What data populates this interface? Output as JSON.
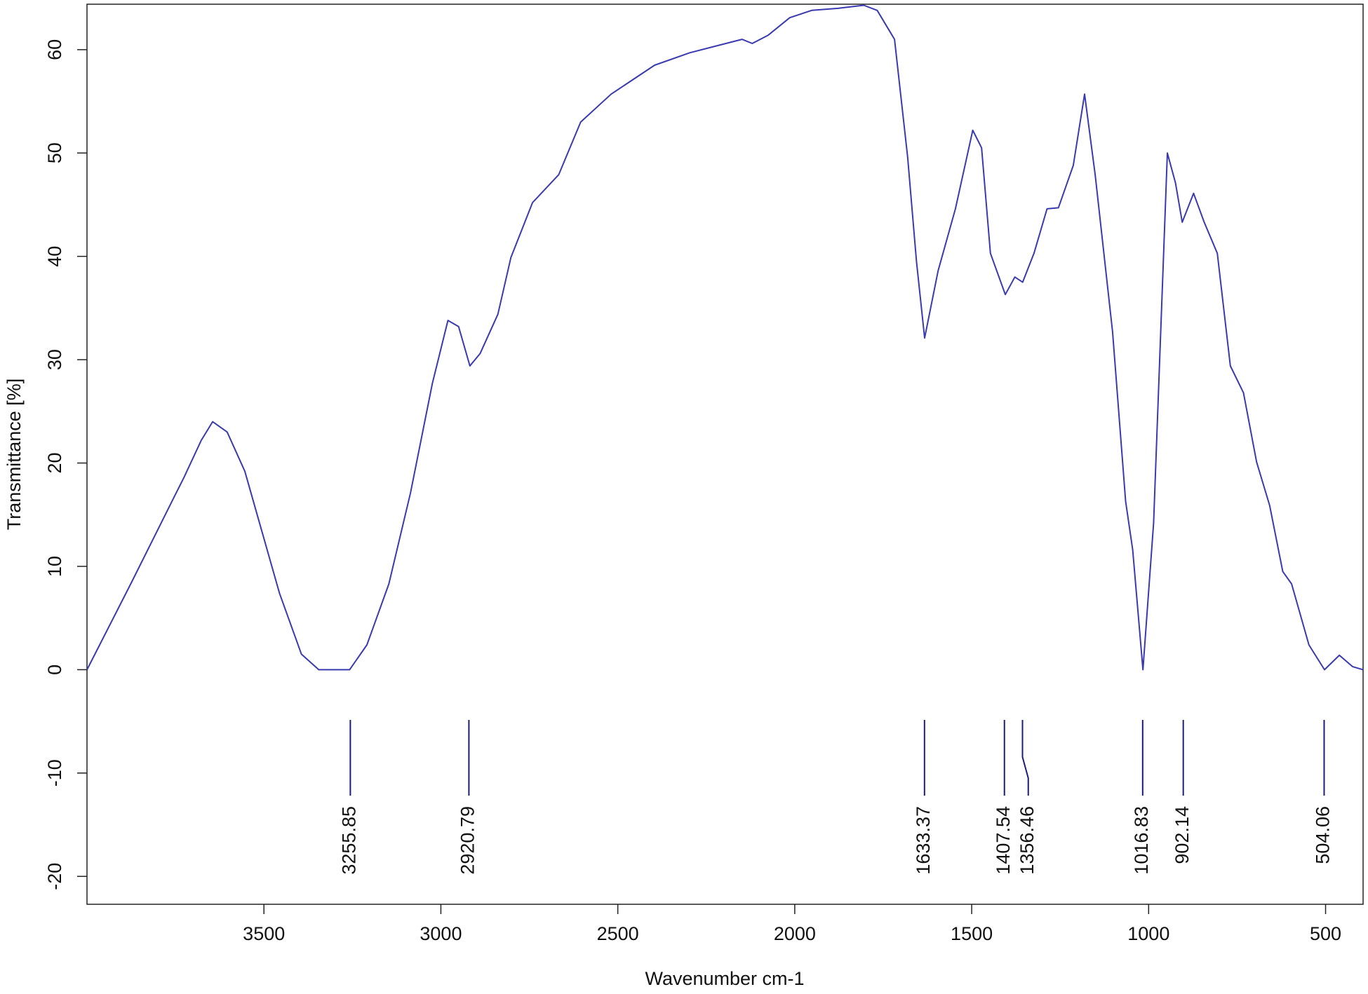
{
  "chart_data": {
    "type": "line",
    "xlabel": "Wavenumber cm-1",
    "ylabel": "Transmittance [%]",
    "x": [
      4000,
      3875,
      3751,
      3726,
      3677,
      3645,
      3604,
      3554,
      3505,
      3456,
      3394,
      3345,
      3258,
      3209,
      3147,
      3086,
      3024,
      2980,
      2950,
      2918,
      2889,
      2839,
      2802,
      2741,
      2667,
      2605,
      2519,
      2396,
      2297,
      2149,
      2120,
      2075,
      2014,
      1952,
      1878,
      1805,
      1767,
      1718,
      1681,
      1656,
      1633,
      1595,
      1546,
      1497,
      1472,
      1447,
      1405,
      1378,
      1356,
      1324,
      1287,
      1255,
      1213,
      1181,
      1151,
      1102,
      1065,
      1045,
      1016,
      986,
      947,
      924,
      905,
      873,
      843,
      806,
      769,
      732,
      695,
      658,
      621,
      596,
      547,
      503,
      461,
      424,
      394
    ],
    "series": [
      {
        "color": "#3a3ab0",
        "values": [
          0,
          8.4,
          16.9,
          18.6,
          22.2,
          24.0,
          23.0,
          19.2,
          13.3,
          7.4,
          1.5,
          0,
          0,
          2.4,
          8.3,
          17.1,
          27.7,
          33.8,
          33.2,
          29.4,
          30.6,
          34.4,
          39.9,
          45.2,
          47.9,
          53.0,
          55.7,
          58.5,
          59.7,
          61.0,
          60.6,
          61.4,
          63.1,
          63.8,
          64.0,
          64.3,
          63.8,
          61.0,
          49.6,
          39.5,
          32.1,
          38.6,
          44.6,
          52.2,
          50.5,
          40.3,
          36.3,
          38.0,
          37.5,
          40.3,
          44.6,
          44.7,
          48.8,
          55.7,
          47.9,
          32.7,
          16.3,
          11.6,
          0,
          14.2,
          50.0,
          47.1,
          43.3,
          46.1,
          43.3,
          40.3,
          29.4,
          26.8,
          20.1,
          15.9,
          9.5,
          8.3,
          2.4,
          0,
          1.4,
          0.3,
          0
        ]
      }
    ],
    "xlim": [
      4000,
      394
    ],
    "ylim": [
      -22.7,
      64.4
    ],
    "xticks": [
      3500,
      3000,
      2500,
      2000,
      1500,
      1000,
      500
    ],
    "yticks": [
      -20,
      -10,
      0,
      10,
      20,
      30,
      40,
      50,
      60
    ],
    "peaks": {
      "color": "#1c1c7a",
      "values": [
        3255.85,
        2920.79,
        1633.37,
        1407.54,
        1356.46,
        1016.83,
        902.14,
        504.06
      ]
    }
  }
}
